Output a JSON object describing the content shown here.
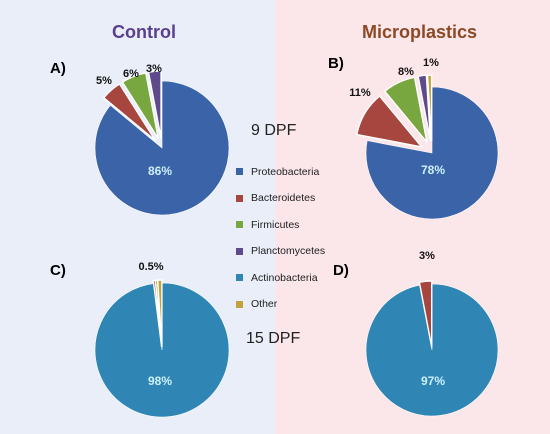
{
  "headers": {
    "control": "Control",
    "microplastics": "Microplastics"
  },
  "panel_letters": {
    "a": "A)",
    "b": "B)",
    "c": "C)",
    "d": "D)"
  },
  "time_labels": {
    "top": "9 DPF",
    "bottom": "15 DPF"
  },
  "legend": [
    {
      "label": "Proteobacteria",
      "color": "#3b64a8"
    },
    {
      "label": "Bacteroidetes",
      "color": "#a7463f"
    },
    {
      "label": "Firmicutes",
      "color": "#78a740"
    },
    {
      "label": "Planctomycetes",
      "color": "#5f4a8b"
    },
    {
      "label": "Actinobacteria",
      "color": "#2f86b4"
    },
    {
      "label": "Other",
      "color": "#c2a23a"
    }
  ],
  "chart_data": [
    {
      "type": "pie",
      "panel": "A)",
      "group": "Control",
      "time": "9 DPF",
      "slices": [
        {
          "category": "Proteobacteria",
          "value": 86,
          "label": "86%"
        },
        {
          "category": "Bacteroidetes",
          "value": 5,
          "label": "5%"
        },
        {
          "category": "Firmicutes",
          "value": 6,
          "label": "6%"
        },
        {
          "category": "Planctomycetes",
          "value": 3,
          "label": "3%"
        }
      ]
    },
    {
      "type": "pie",
      "panel": "B)",
      "group": "Microplastics",
      "time": "9 DPF",
      "slices": [
        {
          "category": "Proteobacteria",
          "value": 78,
          "label": "78%"
        },
        {
          "category": "Bacteroidetes",
          "value": 11,
          "label": "11%"
        },
        {
          "category": "Firmicutes",
          "value": 8,
          "label": "8%"
        },
        {
          "category": "Planctomycetes",
          "value": 2,
          "label": ""
        },
        {
          "category": "Other",
          "value": 1,
          "label": "1%"
        }
      ]
    },
    {
      "type": "pie",
      "panel": "C)",
      "group": "Control",
      "time": "15 DPF",
      "slices": [
        {
          "category": "Actinobacteria",
          "value": 98,
          "label": "98%"
        },
        {
          "category": "Bacteroidetes",
          "value": 0.5,
          "label": "0.5%"
        },
        {
          "category": "Firmicutes",
          "value": 0.5,
          "label": ""
        },
        {
          "category": "Other",
          "value": 1,
          "label": ""
        }
      ]
    },
    {
      "type": "pie",
      "panel": "D)",
      "group": "Microplastics",
      "time": "15 DPF",
      "slices": [
        {
          "category": "Actinobacteria",
          "value": 97,
          "label": "97%"
        },
        {
          "category": "Bacteroidetes",
          "value": 3,
          "label": "3%"
        }
      ]
    }
  ]
}
